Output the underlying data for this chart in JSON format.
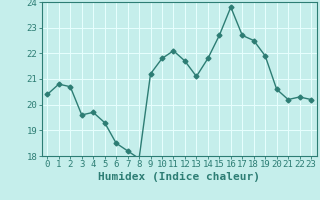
{
  "x": [
    0,
    1,
    2,
    3,
    4,
    5,
    6,
    7,
    8,
    9,
    10,
    11,
    12,
    13,
    14,
    15,
    16,
    17,
    18,
    19,
    20,
    21,
    22,
    23
  ],
  "y": [
    20.4,
    20.8,
    20.7,
    19.6,
    19.7,
    19.3,
    18.5,
    18.2,
    17.9,
    21.2,
    21.8,
    22.1,
    21.7,
    21.1,
    21.8,
    22.7,
    23.8,
    22.7,
    22.5,
    21.9,
    20.6,
    20.2,
    20.3,
    20.2
  ],
  "xlabel": "Humidex (Indice chaleur)",
  "ylim": [
    18,
    24
  ],
  "xlim": [
    -0.5,
    23.5
  ],
  "yticks": [
    18,
    19,
    20,
    21,
    22,
    23,
    24
  ],
  "xticks": [
    0,
    1,
    2,
    3,
    4,
    5,
    6,
    7,
    8,
    9,
    10,
    11,
    12,
    13,
    14,
    15,
    16,
    17,
    18,
    19,
    20,
    21,
    22,
    23
  ],
  "line_color": "#2d7d74",
  "marker": "D",
  "marker_size": 2.5,
  "line_width": 1.0,
  "bg_color": "#c5eeeb",
  "grid_color": "#e8fffe",
  "tick_label_fontsize": 6.5,
  "xlabel_fontsize": 8,
  "xlabel_fontweight": "bold",
  "spine_color": "#2d7d74"
}
